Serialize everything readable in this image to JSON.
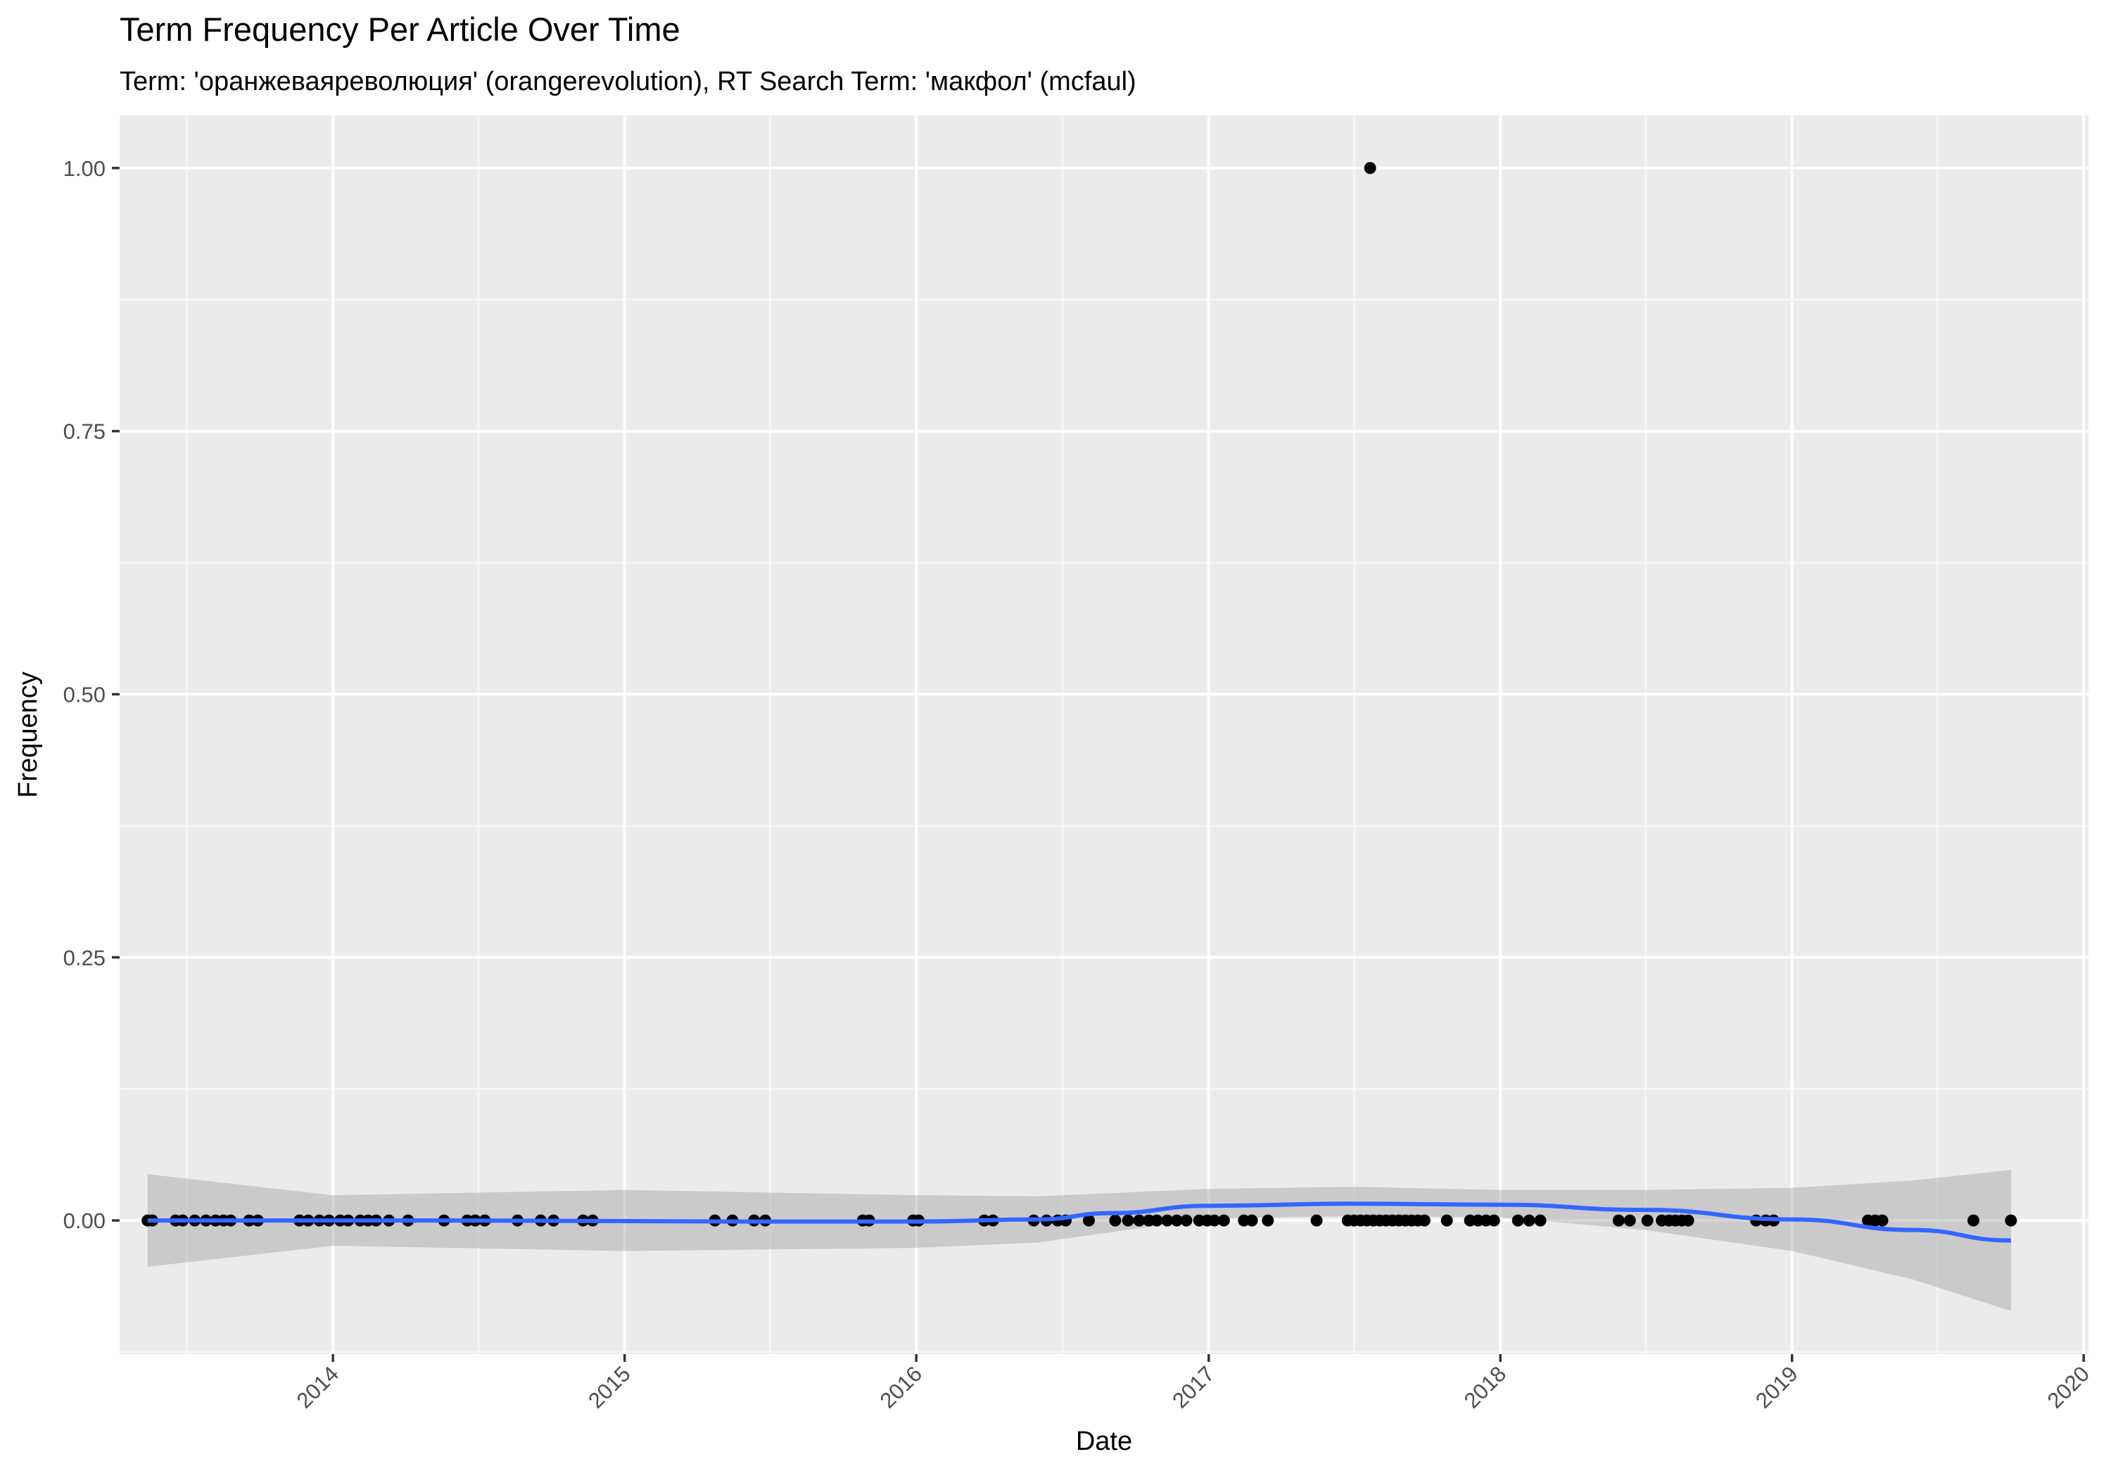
{
  "chart_data": {
    "type": "scatter",
    "title": "Term Frequency Per Article Over Time",
    "subtitle": "Term: 'оранжеваяреволюция' (orangerevolution), RT Search Term: 'макфол' (mcfaul)",
    "xlabel": "Date",
    "ylabel": "Frequency",
    "xlim": [
      "2013-04-09",
      "2020-01-07"
    ],
    "ylim": [
      -0.127,
      1.05
    ],
    "x_ticks": [
      "2014",
      "2015",
      "2016",
      "2017",
      "2018",
      "2019",
      "2020"
    ],
    "y_ticks": [
      "0.00",
      "0.25",
      "0.50",
      "0.75",
      "1.00"
    ],
    "y_tick_values": [
      0,
      0.25,
      0.5,
      0.75,
      1.0
    ],
    "grid": true,
    "colors": {
      "panel_background": "#ebebeb",
      "grid_major": "#ffffff",
      "grid_minor": "#f5f5f5",
      "points": "#000000",
      "smooth_line": "#3366ff",
      "confidence_band": "#999999"
    },
    "series": [
      {
        "kind": "points",
        "points": [
          [
            "2013-05-14",
            0
          ],
          [
            "2013-05-20",
            0
          ],
          [
            "2013-06-18",
            0
          ],
          [
            "2013-06-27",
            0
          ],
          [
            "2013-07-12",
            0
          ],
          [
            "2013-07-26",
            0
          ],
          [
            "2013-08-07",
            0
          ],
          [
            "2013-08-17",
            0
          ],
          [
            "2013-08-26",
            0
          ],
          [
            "2013-09-18",
            0
          ],
          [
            "2013-09-29",
            0
          ],
          [
            "2013-11-20",
            0
          ],
          [
            "2013-12-01",
            0
          ],
          [
            "2013-12-15",
            0
          ],
          [
            "2013-12-27",
            0
          ],
          [
            "2014-01-10",
            0
          ],
          [
            "2014-01-20",
            0
          ],
          [
            "2014-02-04",
            0
          ],
          [
            "2014-02-14",
            0
          ],
          [
            "2014-02-24",
            0
          ],
          [
            "2014-03-12",
            0
          ],
          [
            "2014-04-05",
            0
          ],
          [
            "2014-05-20",
            0
          ],
          [
            "2014-06-18",
            0
          ],
          [
            "2014-06-28",
            0
          ],
          [
            "2014-07-10",
            0
          ],
          [
            "2014-08-20",
            0
          ],
          [
            "2014-09-18",
            0
          ],
          [
            "2014-10-04",
            0
          ],
          [
            "2014-11-10",
            0
          ],
          [
            "2014-11-22",
            0
          ],
          [
            "2015-04-24",
            0
          ],
          [
            "2015-05-16",
            0
          ],
          [
            "2015-06-12",
            0
          ],
          [
            "2015-06-26",
            0
          ],
          [
            "2015-10-26",
            0
          ],
          [
            "2015-11-03",
            0
          ],
          [
            "2015-12-28",
            0
          ],
          [
            "2016-01-04",
            0
          ],
          [
            "2016-03-26",
            0
          ],
          [
            "2016-04-06",
            0
          ],
          [
            "2016-05-27",
            0
          ],
          [
            "2016-06-12",
            0
          ],
          [
            "2016-06-26",
            0
          ],
          [
            "2016-07-06",
            0
          ],
          [
            "2016-08-04",
            0
          ],
          [
            "2016-09-06",
            0
          ],
          [
            "2016-09-22",
            0
          ],
          [
            "2016-10-06",
            0
          ],
          [
            "2016-10-18",
            0
          ],
          [
            "2016-10-28",
            0
          ],
          [
            "2016-11-10",
            0
          ],
          [
            "2016-11-22",
            0
          ],
          [
            "2016-12-04",
            0
          ],
          [
            "2016-12-20",
            0
          ],
          [
            "2016-12-30",
            0
          ],
          [
            "2017-01-08",
            0
          ],
          [
            "2017-01-20",
            0
          ],
          [
            "2017-02-14",
            0
          ],
          [
            "2017-02-24",
            0
          ],
          [
            "2017-03-16",
            0
          ],
          [
            "2017-05-16",
            0
          ],
          [
            "2017-06-24",
            0
          ],
          [
            "2017-07-02",
            0
          ],
          [
            "2017-07-10",
            0
          ],
          [
            "2017-07-18",
            0
          ],
          [
            "2017-07-22",
            1.0
          ],
          [
            "2017-07-26",
            0
          ],
          [
            "2017-08-03",
            0
          ],
          [
            "2017-08-11",
            0
          ],
          [
            "2017-08-19",
            0
          ],
          [
            "2017-08-27",
            0
          ],
          [
            "2017-09-04",
            0
          ],
          [
            "2017-09-12",
            0
          ],
          [
            "2017-09-20",
            0
          ],
          [
            "2017-09-28",
            0
          ],
          [
            "2017-10-26",
            0
          ],
          [
            "2017-11-24",
            0
          ],
          [
            "2017-12-04",
            0
          ],
          [
            "2017-12-14",
            0
          ],
          [
            "2017-12-24",
            0
          ],
          [
            "2018-01-23",
            0
          ],
          [
            "2018-02-06",
            0
          ],
          [
            "2018-02-20",
            0
          ],
          [
            "2018-05-29",
            0
          ],
          [
            "2018-06-12",
            0
          ],
          [
            "2018-07-04",
            0
          ],
          [
            "2018-07-22",
            0
          ],
          [
            "2018-07-31",
            0
          ],
          [
            "2018-08-08",
            0
          ],
          [
            "2018-08-16",
            0
          ],
          [
            "2018-08-24",
            0
          ],
          [
            "2018-11-17",
            0
          ],
          [
            "2018-11-29",
            0
          ],
          [
            "2018-12-09",
            0
          ],
          [
            "2019-04-06",
            0
          ],
          [
            "2019-04-15",
            0
          ],
          [
            "2019-04-24",
            0
          ],
          [
            "2019-08-16",
            0
          ],
          [
            "2019-10-02",
            0
          ]
        ]
      },
      {
        "kind": "smooth",
        "points": [
          [
            "2013-05-14",
            0.0
          ],
          [
            "2014-06-01",
            0.0
          ],
          [
            "2015-06-01",
            -0.001
          ],
          [
            "2016-01-01",
            -0.001
          ],
          [
            "2016-06-01",
            0.001
          ],
          [
            "2016-09-01",
            0.007
          ],
          [
            "2017-01-01",
            0.014
          ],
          [
            "2017-07-01",
            0.016
          ],
          [
            "2018-01-01",
            0.015
          ],
          [
            "2018-07-01",
            0.01
          ],
          [
            "2019-01-01",
            0.001
          ],
          [
            "2019-06-01",
            -0.009
          ],
          [
            "2019-10-02",
            -0.019
          ]
        ],
        "band": [
          [
            "2013-05-14",
            -0.044,
            0.044
          ],
          [
            "2014-01-01",
            -0.024,
            0.024
          ],
          [
            "2015-01-01",
            -0.029,
            0.029
          ],
          [
            "2016-01-01",
            -0.026,
            0.024
          ],
          [
            "2016-06-01",
            -0.021,
            0.023
          ],
          [
            "2017-01-01",
            0.002,
            0.03
          ],
          [
            "2017-07-01",
            0.004,
            0.032
          ],
          [
            "2018-01-01",
            0.003,
            0.029
          ],
          [
            "2018-07-01",
            -0.009,
            0.029
          ],
          [
            "2019-01-01",
            -0.029,
            0.031
          ],
          [
            "2019-06-01",
            -0.056,
            0.038
          ],
          [
            "2019-10-02",
            -0.086,
            0.048
          ]
        ]
      }
    ]
  }
}
